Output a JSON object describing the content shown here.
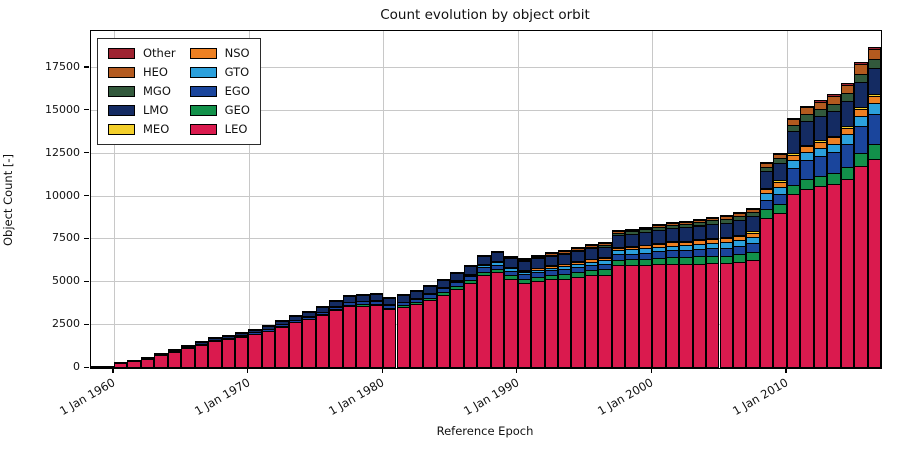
{
  "chart_data": {
    "type": "bar",
    "stacked": true,
    "title": "Count evolution by object orbit",
    "xlabel": "Reference Epoch",
    "ylabel": "Object Count [-]",
    "grid": true,
    "legend_position": "upper left",
    "legend_columns": 2,
    "legend_order": [
      "Other",
      "HEO",
      "MGO",
      "LMO",
      "MEO",
      "NSO",
      "GTO",
      "EGO",
      "GEO",
      "LEO"
    ],
    "x_tick_years": [
      1960,
      1970,
      1980,
      1990,
      2000,
      2010
    ],
    "x_tick_labels": [
      "1 Jan 1960",
      "1 Jan 1970",
      "1 Jan 1980",
      "1 Jan 1990",
      "1 Jan 2000",
      "1 Jan 2010"
    ],
    "y_ticks": [
      0,
      2500,
      5000,
      7500,
      10000,
      12500,
      15000,
      17500
    ],
    "ylim": [
      0,
      19650
    ],
    "x_range_years": [
      1958.3,
      2017.0
    ],
    "years": [
      1957,
      1958,
      1959,
      1960,
      1961,
      1962,
      1963,
      1964,
      1965,
      1966,
      1967,
      1968,
      1969,
      1970,
      1971,
      1972,
      1973,
      1974,
      1975,
      1976,
      1977,
      1978,
      1979,
      1980,
      1981,
      1982,
      1983,
      1984,
      1985,
      1986,
      1987,
      1988,
      1989,
      1990,
      1991,
      1992,
      1993,
      1994,
      1995,
      1996,
      1997,
      1998,
      1999,
      2000,
      2001,
      2002,
      2003,
      2004,
      2005,
      2006,
      2007,
      2008,
      2009,
      2010,
      2011,
      2012,
      2013,
      2014,
      2015,
      2016
    ],
    "series": [
      {
        "name": "LEO",
        "color": "#da1a4e",
        "values": [
          8,
          23,
          75,
          270,
          387,
          533,
          733,
          958,
          1153,
          1359,
          1555,
          1690,
          1835,
          1980,
          2163,
          2415,
          2657,
          2845,
          3088,
          3381,
          3615,
          3643,
          3660,
          3425,
          3544,
          3717,
          3960,
          4285,
          4608,
          4932,
          5437,
          5571,
          5197,
          4964,
          5066,
          5165,
          5216,
          5325,
          5425,
          5450,
          5995,
          6004,
          6020,
          6069,
          6079,
          6069,
          6090,
          6105,
          6110,
          6167,
          6303,
          8750,
          9040,
          10150,
          10440,
          10615,
          10730,
          11020,
          11780,
          12190
        ]
      },
      {
        "name": "GEO",
        "color": "#12914a",
        "values": [
          0,
          0,
          0,
          0,
          0,
          0,
          0,
          2,
          4,
          6,
          8,
          10,
          12,
          15,
          20,
          25,
          30,
          35,
          45,
          55,
          65,
          75,
          85,
          95,
          105,
          115,
          130,
          145,
          160,
          175,
          190,
          205,
          215,
          225,
          235,
          245,
          255,
          265,
          280,
          295,
          310,
          325,
          345,
          365,
          385,
          400,
          415,
          430,
          445,
          460,
          475,
          495,
          515,
          540,
          565,
          590,
          620,
          680,
          760,
          870
        ]
      },
      {
        "name": "EGO",
        "color": "#1a459c",
        "values": [
          0,
          2,
          5,
          12,
          18,
          25,
          32,
          40,
          48,
          55,
          62,
          70,
          78,
          85,
          95,
          105,
          115,
          125,
          135,
          145,
          155,
          165,
          175,
          180,
          185,
          190,
          200,
          210,
          220,
          230,
          240,
          250,
          258,
          265,
          272,
          280,
          288,
          296,
          305,
          315,
          330,
          345,
          360,
          375,
          390,
          405,
          420,
          440,
          460,
          485,
          510,
          560,
          620,
          1000,
          1120,
          1150,
          1220,
          1380,
          1560,
          1740
        ]
      },
      {
        "name": "GTO",
        "color": "#2ba0dc",
        "values": [
          0,
          0,
          0,
          0,
          0,
          0,
          0,
          0,
          0,
          0,
          0,
          0,
          0,
          0,
          0,
          0,
          0,
          5,
          10,
          15,
          20,
          25,
          30,
          35,
          40,
          50,
          60,
          75,
          90,
          105,
          120,
          130,
          140,
          150,
          160,
          170,
          180,
          190,
          200,
          210,
          225,
          240,
          255,
          270,
          285,
          295,
          305,
          315,
          325,
          340,
          355,
          375,
          395,
          430,
          480,
          495,
          520,
          560,
          600,
          645
        ]
      },
      {
        "name": "NSO",
        "color": "#ee8022",
        "values": [
          0,
          0,
          0,
          0,
          0,
          0,
          0,
          0,
          0,
          0,
          0,
          0,
          0,
          0,
          0,
          0,
          0,
          0,
          0,
          0,
          0,
          0,
          0,
          0,
          0,
          0,
          5,
          15,
          25,
          35,
          45,
          55,
          65,
          75,
          85,
          95,
          105,
          115,
          125,
          135,
          150,
          160,
          170,
          180,
          190,
          200,
          210,
          220,
          230,
          240,
          250,
          265,
          280,
          300,
          320,
          340,
          355,
          375,
          395,
          415
        ]
      },
      {
        "name": "MEO",
        "color": "#f3cf2b",
        "values": [
          0,
          0,
          0,
          0,
          0,
          0,
          0,
          0,
          0,
          0,
          0,
          0,
          0,
          0,
          0,
          0,
          0,
          0,
          0,
          0,
          0,
          0,
          0,
          0,
          0,
          0,
          5,
          8,
          12,
          15,
          18,
          22,
          25,
          28,
          30,
          33,
          35,
          38,
          40,
          43,
          45,
          48,
          50,
          53,
          55,
          58,
          60,
          63,
          65,
          70,
          75,
          80,
          85,
          90,
          95,
          100,
          103,
          106,
          110,
          115
        ]
      },
      {
        "name": "LMO",
        "color": "#142b62",
        "values": [
          0,
          0,
          0,
          8,
          15,
          22,
          30,
          40,
          60,
          80,
          100,
          120,
          140,
          160,
          180,
          210,
          240,
          260,
          290,
          320,
          350,
          370,
          380,
          370,
          380,
          390,
          400,
          420,
          440,
          460,
          490,
          510,
          520,
          530,
          545,
          560,
          575,
          590,
          610,
          630,
          700,
          720,
          740,
          760,
          780,
          795,
          810,
          825,
          840,
          860,
          880,
          950,
          1000,
          1300,
          1380,
          1400,
          1430,
          1450,
          1480,
          1520
        ]
      },
      {
        "name": "MGO",
        "color": "#32593c",
        "values": [
          0,
          0,
          0,
          0,
          0,
          0,
          0,
          0,
          0,
          0,
          0,
          0,
          0,
          0,
          0,
          0,
          0,
          0,
          0,
          0,
          0,
          0,
          0,
          0,
          0,
          0,
          0,
          0,
          0,
          0,
          0,
          25,
          35,
          45,
          55,
          65,
          75,
          85,
          95,
          105,
          120,
          135,
          150,
          165,
          180,
          190,
          200,
          210,
          220,
          235,
          250,
          270,
          290,
          360,
          390,
          400,
          420,
          445,
          470,
          520
        ]
      },
      {
        "name": "HEO",
        "color": "#b35a1f",
        "values": [
          0,
          0,
          0,
          0,
          0,
          0,
          5,
          10,
          15,
          20,
          25,
          30,
          35,
          40,
          42,
          45,
          48,
          50,
          52,
          54,
          55,
          52,
          50,
          45,
          46,
          48,
          50,
          52,
          55,
          58,
          60,
          62,
          65,
          68,
          70,
          73,
          75,
          78,
          80,
          85,
          90,
          95,
          100,
          110,
          120,
          130,
          140,
          150,
          160,
          175,
          190,
          220,
          250,
          350,
          410,
          440,
          470,
          510,
          550,
          590
        ]
      },
      {
        "name": "Other",
        "color": "#9e2331",
        "values": [
          0,
          0,
          0,
          0,
          0,
          0,
          0,
          0,
          0,
          0,
          0,
          0,
          0,
          0,
          0,
          0,
          0,
          0,
          0,
          0,
          0,
          0,
          0,
          0,
          0,
          0,
          0,
          0,
          0,
          0,
          0,
          0,
          0,
          10,
          12,
          14,
          16,
          18,
          20,
          22,
          25,
          28,
          30,
          33,
          36,
          38,
          40,
          42,
          45,
          48,
          52,
          58,
          64,
          80,
          85,
          88,
          95,
          105,
          115,
          125
        ]
      }
    ],
    "style": {
      "background": "#ffffff",
      "grid_color": "#c8c8c8",
      "spine_color": "#000000",
      "bar_edge_color": "#000000"
    }
  }
}
